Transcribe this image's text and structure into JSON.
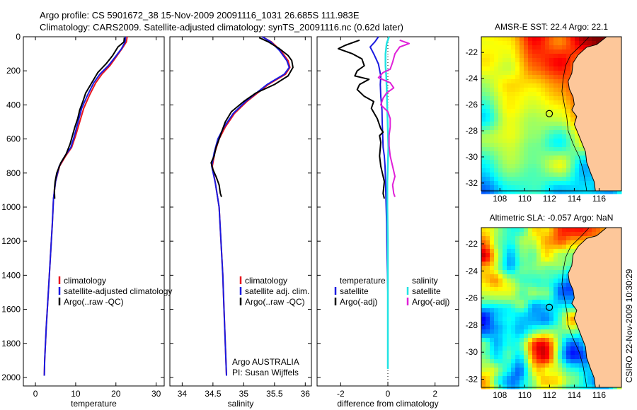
{
  "figure": {
    "title_line1": "Argo profile: CS 5901672_38 15-Nov-2009 20091116_1031 26.685S 111.983E",
    "title_line2": "Climatology: CARS2009. Satellite-adjusted climatology: synTS_20091116.nc (0.62d later)",
    "side_label": "CSIRO 22-Nov-2009 10:30:29",
    "colors": {
      "red": "#e8161e",
      "blue": "#1a1ae0",
      "black": "#000000",
      "cyan": "#22e3e3",
      "magenta": "#e020d8"
    }
  },
  "chart_data": [
    {
      "id": "temperature",
      "type": "line",
      "xlabel": "temperature",
      "ylabel": "",
      "xlim": [
        -3,
        32
      ],
      "ylim": [
        2050,
        0
      ],
      "xticks": [
        0,
        10,
        20,
        30
      ],
      "yticks": [
        0,
        200,
        400,
        600,
        800,
        1000,
        1200,
        1400,
        1600,
        1800,
        2000
      ],
      "legend": [
        "climatology",
        "satellite-adjusted climatology",
        "Argo(..raw -QC)"
      ],
      "legend_position": "lower-center",
      "series": [
        {
          "name": "climatology",
          "color": "red",
          "points": [
            [
              22.8,
              0
            ],
            [
              22.6,
              30
            ],
            [
              21.5,
              70
            ],
            [
              20,
              120
            ],
            [
              18.5,
              170
            ],
            [
              16.5,
              220
            ],
            [
              15,
              270
            ],
            [
              13.5,
              340
            ],
            [
              12,
              420
            ],
            [
              11,
              500
            ],
            [
              10,
              580
            ],
            [
              9,
              650
            ],
            [
              7.5,
              700
            ],
            [
              6,
              760
            ],
            [
              5,
              850
            ],
            [
              4.5,
              950
            ],
            [
              4.2,
              1100
            ],
            [
              3.7,
              1300
            ],
            [
              3.2,
              1500
            ],
            [
              2.7,
              1700
            ],
            [
              2.3,
              1900
            ],
            [
              2.2,
              1990
            ]
          ]
        },
        {
          "name": "satellite-adjusted climatology",
          "color": "blue",
          "points": [
            [
              22.4,
              0
            ],
            [
              22.3,
              30
            ],
            [
              21.4,
              70
            ],
            [
              19.8,
              120
            ],
            [
              18.1,
              170
            ],
            [
              16,
              220
            ],
            [
              14.5,
              270
            ],
            [
              13,
              340
            ],
            [
              11.5,
              420
            ],
            [
              10.6,
              500
            ],
            [
              9.7,
              580
            ],
            [
              8.8,
              650
            ],
            [
              7.3,
              700
            ],
            [
              5.9,
              760
            ],
            [
              5,
              850
            ],
            [
              4.5,
              950
            ],
            [
              4.2,
              1100
            ],
            [
              3.7,
              1300
            ],
            [
              3.2,
              1500
            ],
            [
              2.7,
              1700
            ],
            [
              2.3,
              1900
            ],
            [
              2.2,
              1990
            ]
          ]
        },
        {
          "name": "Argo",
          "color": "black",
          "points": [
            [
              22.1,
              5
            ],
            [
              22,
              30
            ],
            [
              20.5,
              60
            ],
            [
              19.2,
              110
            ],
            [
              17.5,
              160
            ],
            [
              15.5,
              210
            ],
            [
              14.5,
              250
            ],
            [
              13.5,
              290
            ],
            [
              12.5,
              330
            ],
            [
              11.8,
              380
            ],
            [
              11,
              430
            ],
            [
              10.5,
              480
            ],
            [
              9.8,
              530
            ],
            [
              9.2,
              580
            ],
            [
              8.6,
              630
            ],
            [
              7.6,
              690
            ],
            [
              6.3,
              740
            ],
            [
              5.3,
              800
            ],
            [
              4.9,
              850
            ],
            [
              4.7,
              900
            ],
            [
              4.8,
              950
            ]
          ]
        }
      ]
    },
    {
      "id": "salinity",
      "type": "line",
      "xlabel": "salinity",
      "xlim": [
        33.8,
        36.1
      ],
      "ylim": [
        2050,
        0
      ],
      "xticks": [
        34,
        34.5,
        35,
        35.5,
        36
      ],
      "xticklabels": [
        "34",
        "34.5",
        "35",
        "35.5",
        "36"
      ],
      "legend": [
        "climatology",
        "satellite adj. clim.",
        "Argo(..raw -QC)"
      ],
      "legend_position": "lower-center",
      "annotation": [
        "Argo AUSTRALIA",
        "PI: Susan Wijffels"
      ],
      "series": [
        {
          "name": "climatology",
          "color": "red",
          "points": [
            [
              35.3,
              0
            ],
            [
              35.45,
              30
            ],
            [
              35.6,
              80
            ],
            [
              35.72,
              140
            ],
            [
              35.75,
              180
            ],
            [
              35.68,
              220
            ],
            [
              35.4,
              280
            ],
            [
              35.05,
              380
            ],
            [
              34.85,
              450
            ],
            [
              34.7,
              530
            ],
            [
              34.6,
              600
            ],
            [
              34.53,
              680
            ],
            [
              34.49,
              760
            ],
            [
              34.54,
              860
            ],
            [
              34.6,
              1000
            ],
            [
              34.63,
              1200
            ],
            [
              34.66,
              1400
            ],
            [
              34.68,
              1600
            ],
            [
              34.7,
              1800
            ],
            [
              34.72,
              1990
            ]
          ]
        },
        {
          "name": "satellite adj. clim.",
          "color": "blue",
          "points": [
            [
              35.3,
              0
            ],
            [
              35.44,
              30
            ],
            [
              35.58,
              80
            ],
            [
              35.7,
              140
            ],
            [
              35.74,
              180
            ],
            [
              35.66,
              220
            ],
            [
              35.38,
              280
            ],
            [
              35.03,
              380
            ],
            [
              34.83,
              450
            ],
            [
              34.68,
              530
            ],
            [
              34.58,
              600
            ],
            [
              34.52,
              680
            ],
            [
              34.48,
              760
            ],
            [
              34.54,
              860
            ],
            [
              34.6,
              1000
            ],
            [
              34.63,
              1200
            ],
            [
              34.66,
              1400
            ],
            [
              34.68,
              1600
            ],
            [
              34.7,
              1800
            ],
            [
              34.72,
              1990
            ]
          ]
        },
        {
          "name": "Argo",
          "color": "black",
          "points": [
            [
              35.25,
              5
            ],
            [
              35.4,
              30
            ],
            [
              35.58,
              70
            ],
            [
              35.72,
              110
            ],
            [
              35.78,
              140
            ],
            [
              35.8,
              180
            ],
            [
              35.72,
              230
            ],
            [
              35.5,
              280
            ],
            [
              35.2,
              330
            ],
            [
              35.0,
              380
            ],
            [
              34.8,
              440
            ],
            [
              34.7,
              500
            ],
            [
              34.65,
              550
            ],
            [
              34.6,
              600
            ],
            [
              34.55,
              650
            ],
            [
              34.52,
              700
            ],
            [
              34.47,
              740
            ],
            [
              34.5,
              780
            ],
            [
              34.55,
              820
            ],
            [
              34.6,
              870
            ],
            [
              34.62,
              920
            ],
            [
              34.64,
              940
            ]
          ]
        }
      ]
    },
    {
      "id": "difference",
      "type": "line",
      "xlabel": "difference from climatology",
      "xlim": [
        -3,
        3
      ],
      "ylim": [
        2050,
        0
      ],
      "xticks": [
        -2,
        0,
        2
      ],
      "xticklabels": [
        "-2",
        "0",
        "2"
      ],
      "legend_left_title": "temperature",
      "legend_right_title": "salinity",
      "legend_left": [
        "satellite",
        "Argo(-adj)"
      ],
      "legend_right": [
        "satellite",
        "Argo(-adj)"
      ],
      "legend_position": "lower-center",
      "series": [
        {
          "name": "temperature satellite",
          "color": "blue",
          "points": [
            [
              -0.4,
              0
            ],
            [
              -0.55,
              30
            ],
            [
              -0.75,
              60
            ],
            [
              -0.6,
              100
            ],
            [
              -0.4,
              160
            ],
            [
              -0.3,
              230
            ],
            [
              -0.32,
              280
            ],
            [
              -0.3,
              350
            ],
            [
              -0.25,
              430
            ],
            [
              -0.24,
              500
            ],
            [
              -0.22,
              580
            ],
            [
              -0.2,
              650
            ],
            [
              -0.15,
              700
            ],
            [
              -0.12,
              760
            ],
            [
              -0.1,
              850
            ],
            [
              -0.08,
              950
            ],
            [
              -0.05,
              1100
            ],
            [
              -0.03,
              1300
            ],
            [
              0,
              1500
            ],
            [
              0,
              1600
            ]
          ]
        },
        {
          "name": "temperature Argo(-adj)",
          "color": "black",
          "points": [
            [
              -1.2,
              20
            ],
            [
              -1.8,
              50
            ],
            [
              -2.1,
              70
            ],
            [
              -1.5,
              100
            ],
            [
              -1.1,
              130
            ],
            [
              -1.0,
              170
            ],
            [
              -1.3,
              200
            ],
            [
              -1.4,
              230
            ],
            [
              -0.8,
              250
            ],
            [
              -1.2,
              280
            ],
            [
              -1.3,
              310
            ],
            [
              -1.0,
              350
            ],
            [
              -0.6,
              380
            ],
            [
              -0.7,
              420
            ],
            [
              -0.45,
              480
            ],
            [
              -0.3,
              540
            ],
            [
              -0.2,
              560
            ],
            [
              -0.35,
              580
            ],
            [
              -0.3,
              620
            ],
            [
              -0.35,
              700
            ],
            [
              -0.3,
              760
            ],
            [
              -0.15,
              850
            ],
            [
              -0.2,
              920
            ],
            [
              -0.15,
              950
            ]
          ]
        },
        {
          "name": "salinity satellite",
          "color": "cyan",
          "points": [
            [
              0.05,
              0
            ],
            [
              -0.05,
              40
            ],
            [
              -0.1,
              100
            ],
            [
              -0.1,
              170
            ],
            [
              -0.07,
              230
            ],
            [
              -0.05,
              300
            ],
            [
              -0.03,
              400
            ],
            [
              0,
              550
            ],
            [
              0.02,
              650
            ],
            [
              0.0,
              750
            ],
            [
              -0.02,
              850
            ],
            [
              -0.02,
              1000
            ],
            [
              0,
              1200
            ],
            [
              0,
              1400
            ],
            [
              0,
              1600
            ],
            [
              0,
              1800
            ],
            [
              0,
              1950
            ]
          ]
        },
        {
          "name": "salinity Argo(-adj)",
          "color": "magenta",
          "points": [
            [
              0.5,
              20
            ],
            [
              0.9,
              40
            ],
            [
              0.5,
              60
            ],
            [
              0.3,
              100
            ],
            [
              0.2,
              150
            ],
            [
              0.1,
              190
            ],
            [
              -0.2,
              210
            ],
            [
              -0.4,
              240
            ],
            [
              0.1,
              270
            ],
            [
              0.25,
              300
            ],
            [
              -0.05,
              330
            ],
            [
              -0.2,
              360
            ],
            [
              -0.3,
              400
            ],
            [
              0.0,
              440
            ],
            [
              0.1,
              480
            ],
            [
              0.1,
              530
            ],
            [
              0.05,
              580
            ],
            [
              0.05,
              640
            ],
            [
              0.1,
              700
            ],
            [
              0.2,
              760
            ],
            [
              0.3,
              820
            ],
            [
              0.2,
              870
            ],
            [
              0.25,
              920
            ],
            [
              0.3,
              940
            ]
          ]
        }
      ]
    },
    {
      "id": "sst-map",
      "type": "heatmap",
      "title": "AMSR-E SST: 22.4 Argo: 22.1",
      "xlim": [
        106.5,
        117.8
      ],
      "ylim": [
        -32.6,
        -20.8
      ],
      "xticks": [
        108,
        110,
        112,
        114,
        116
      ],
      "yticks": [
        -22,
        -24,
        -26,
        -28,
        -30,
        -32
      ],
      "marker": {
        "lon": 111.983,
        "lat": -26.685
      },
      "palette": "jet"
    },
    {
      "id": "sla-map",
      "type": "heatmap",
      "title": "Altimetric SLA: -0.057 Argo: NaN",
      "xlim": [
        106.5,
        117.8
      ],
      "ylim": [
        -32.6,
        -20.8
      ],
      "xticks": [
        108,
        110,
        112,
        114,
        116
      ],
      "yticks": [
        -22,
        -24,
        -26,
        -28,
        -30,
        -32
      ],
      "marker": {
        "lon": 111.983,
        "lat": -26.685
      },
      "palette": "jet"
    }
  ]
}
